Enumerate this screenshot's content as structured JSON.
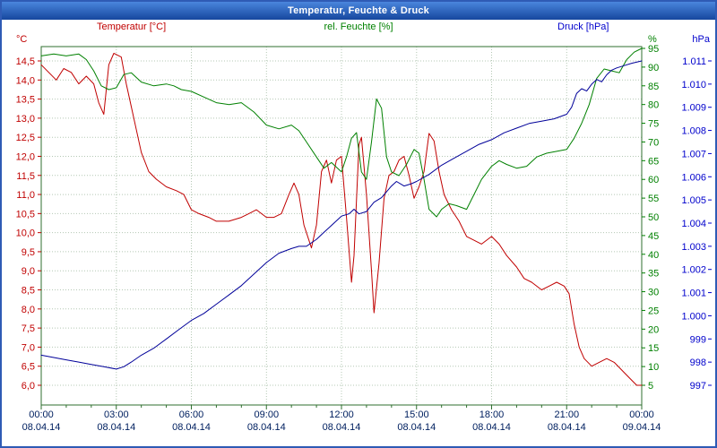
{
  "window": {
    "title": "Temperatur, Feuchte & Druck"
  },
  "legend": {
    "temperature_label": "Temperatur [°C]",
    "humidity_label": "rel. Feuchte [%]",
    "pressure_label": "Druck [hPa]"
  },
  "axis_units": {
    "left": "°C",
    "right": "%",
    "far_right": "hPa"
  },
  "colors": {
    "temperature": "#c00000",
    "humidity": "#008000",
    "pressure_line": "#000099",
    "pressure_label": "#0000cc",
    "grid": "#b4c8b4",
    "frame": "#2f6f2f",
    "x_label": "#002060",
    "title_bar": "#16479e"
  },
  "chart_data": {
    "type": "line",
    "title": "Temperatur, Feuchte & Druck",
    "grid": true,
    "legend_position": "top",
    "x_axis": {
      "range_hours": [
        0,
        24
      ],
      "tick_hours": [
        0,
        3,
        6,
        9,
        12,
        15,
        18,
        21,
        24
      ],
      "tick_times": [
        "00:00",
        "03:00",
        "06:00",
        "09:00",
        "12:00",
        "15:00",
        "18:00",
        "21:00",
        "00:00"
      ],
      "tick_dates": [
        "08.04.14",
        "08.04.14",
        "08.04.14",
        "08.04.14",
        "08.04.14",
        "08.04.14",
        "08.04.14",
        "08.04.14",
        "09.04.14"
      ]
    },
    "axes": {
      "temperature": {
        "unit": "°C",
        "color": "#c00000",
        "min": 6.0,
        "max": 14.5,
        "tick_values": [
          14.5,
          14.0,
          13.5,
          13.0,
          12.5,
          12.0,
          11.5,
          11.0,
          10.5,
          10.0,
          9.5,
          9.0,
          8.5,
          8.0,
          7.5,
          7.0,
          6.5,
          6.0
        ],
        "tick_labels": [
          "14,5",
          "14,0",
          "13,5",
          "13,0",
          "12,5",
          "12,0",
          "11,5",
          "11,0",
          "10,5",
          "10,0",
          "9,5",
          "9,0",
          "8,5",
          "8,0",
          "7,5",
          "7,0",
          "6,5",
          "6,0"
        ]
      },
      "humidity": {
        "unit": "%",
        "color": "#008000",
        "min": 5,
        "max": 95,
        "tick_values": [
          95,
          90,
          85,
          80,
          75,
          70,
          65,
          60,
          55,
          50,
          45,
          40,
          35,
          30,
          25,
          20,
          15,
          10,
          5
        ],
        "tick_labels": [
          "95",
          "90",
          "85",
          "80",
          "75",
          "70",
          "65",
          "60",
          "55",
          "50",
          "45",
          "40",
          "35",
          "30",
          "25",
          "20",
          "15",
          "10",
          "5"
        ]
      },
      "pressure": {
        "unit": "hPa",
        "color": "#0000cc",
        "min": 997,
        "max": 1011,
        "tick_values": [
          1011,
          1010,
          1009,
          1008,
          1007,
          1006,
          1005,
          1004,
          1003,
          1002,
          1001,
          1000,
          999,
          998,
          997
        ],
        "tick_labels": [
          "1.011",
          "1.010",
          "1.009",
          "1.008",
          "1.007",
          "1.006",
          "1.005",
          "1.004",
          "1.003",
          "1.002",
          "1.001",
          "1.000",
          "999",
          "998",
          "997"
        ]
      }
    },
    "series": [
      {
        "name": "Temperatur [°C]",
        "axis": "temperature",
        "color": "#c00000",
        "points": [
          [
            0,
            14.4
          ],
          [
            0.3,
            14.2
          ],
          [
            0.6,
            14.0
          ],
          [
            0.9,
            14.3
          ],
          [
            1.2,
            14.2
          ],
          [
            1.5,
            13.9
          ],
          [
            1.8,
            14.1
          ],
          [
            2.1,
            13.9
          ],
          [
            2.3,
            13.4
          ],
          [
            2.5,
            13.1
          ],
          [
            2.7,
            14.4
          ],
          [
            2.9,
            14.7
          ],
          [
            3.2,
            14.6
          ],
          [
            3.4,
            13.9
          ],
          [
            3.6,
            13.3
          ],
          [
            3.8,
            12.7
          ],
          [
            4.0,
            12.1
          ],
          [
            4.3,
            11.6
          ],
          [
            4.6,
            11.4
          ],
          [
            5.0,
            11.2
          ],
          [
            5.4,
            11.1
          ],
          [
            5.7,
            11.0
          ],
          [
            6.0,
            10.6
          ],
          [
            6.3,
            10.5
          ],
          [
            6.7,
            10.4
          ],
          [
            7.0,
            10.3
          ],
          [
            7.5,
            10.3
          ],
          [
            8.0,
            10.4
          ],
          [
            8.3,
            10.5
          ],
          [
            8.6,
            10.6
          ],
          [
            9.0,
            10.4
          ],
          [
            9.3,
            10.4
          ],
          [
            9.6,
            10.5
          ],
          [
            9.9,
            11.0
          ],
          [
            10.1,
            11.3
          ],
          [
            10.3,
            11.0
          ],
          [
            10.5,
            10.2
          ],
          [
            10.8,
            9.6
          ],
          [
            11.0,
            10.2
          ],
          [
            11.2,
            11.6
          ],
          [
            11.4,
            11.9
          ],
          [
            11.6,
            11.3
          ],
          [
            11.8,
            11.9
          ],
          [
            12.0,
            12.0
          ],
          [
            12.2,
            10.4
          ],
          [
            12.4,
            8.7
          ],
          [
            12.5,
            9.4
          ],
          [
            12.7,
            12.3
          ],
          [
            12.8,
            12.5
          ],
          [
            13.0,
            11.0
          ],
          [
            13.2,
            9.0
          ],
          [
            13.3,
            7.9
          ],
          [
            13.5,
            9.2
          ],
          [
            13.7,
            10.9
          ],
          [
            13.9,
            11.5
          ],
          [
            14.1,
            11.6
          ],
          [
            14.3,
            11.9
          ],
          [
            14.5,
            12.0
          ],
          [
            14.7,
            11.5
          ],
          [
            14.9,
            10.9
          ],
          [
            15.1,
            11.2
          ],
          [
            15.3,
            11.6
          ],
          [
            15.5,
            12.6
          ],
          [
            15.7,
            12.4
          ],
          [
            15.9,
            11.6
          ],
          [
            16.1,
            11.0
          ],
          [
            16.4,
            10.6
          ],
          [
            16.7,
            10.3
          ],
          [
            17.0,
            9.9
          ],
          [
            17.3,
            9.8
          ],
          [
            17.6,
            9.7
          ],
          [
            18.0,
            9.9
          ],
          [
            18.3,
            9.7
          ],
          [
            18.6,
            9.4
          ],
          [
            19.0,
            9.1
          ],
          [
            19.3,
            8.8
          ],
          [
            19.6,
            8.7
          ],
          [
            20.0,
            8.5
          ],
          [
            20.3,
            8.6
          ],
          [
            20.6,
            8.7
          ],
          [
            20.9,
            8.6
          ],
          [
            21.1,
            8.4
          ],
          [
            21.3,
            7.6
          ],
          [
            21.5,
            7.0
          ],
          [
            21.7,
            6.7
          ],
          [
            22.0,
            6.5
          ],
          [
            22.3,
            6.6
          ],
          [
            22.6,
            6.7
          ],
          [
            22.9,
            6.6
          ],
          [
            23.2,
            6.4
          ],
          [
            23.5,
            6.2
          ],
          [
            23.8,
            6.0
          ],
          [
            24,
            6.0
          ]
        ]
      },
      {
        "name": "rel. Feuchte [%]",
        "axis": "humidity",
        "color": "#008000",
        "points": [
          [
            0,
            93
          ],
          [
            0.5,
            93.5
          ],
          [
            1,
            93
          ],
          [
            1.5,
            93.5
          ],
          [
            1.8,
            92
          ],
          [
            2.1,
            89
          ],
          [
            2.4,
            85
          ],
          [
            2.7,
            84
          ],
          [
            3.0,
            84.5
          ],
          [
            3.3,
            88
          ],
          [
            3.6,
            88.5
          ],
          [
            4.0,
            86
          ],
          [
            4.5,
            85
          ],
          [
            5.0,
            85.5
          ],
          [
            5.3,
            85
          ],
          [
            5.6,
            84
          ],
          [
            6.0,
            83.5
          ],
          [
            6.5,
            82
          ],
          [
            7.0,
            80.5
          ],
          [
            7.5,
            80
          ],
          [
            8.0,
            80.5
          ],
          [
            8.5,
            78
          ],
          [
            9.0,
            74.5
          ],
          [
            9.5,
            73.5
          ],
          [
            10.0,
            74.5
          ],
          [
            10.3,
            73
          ],
          [
            10.6,
            70
          ],
          [
            11.0,
            66
          ],
          [
            11.3,
            63
          ],
          [
            11.6,
            64.5
          ],
          [
            12.0,
            62
          ],
          [
            12.2,
            66
          ],
          [
            12.4,
            71
          ],
          [
            12.6,
            72.5
          ],
          [
            12.8,
            62
          ],
          [
            13.0,
            60
          ],
          [
            13.2,
            70
          ],
          [
            13.4,
            81.5
          ],
          [
            13.6,
            79
          ],
          [
            13.8,
            66
          ],
          [
            14.0,
            62
          ],
          [
            14.3,
            61
          ],
          [
            14.6,
            64
          ],
          [
            14.9,
            68
          ],
          [
            15.1,
            67
          ],
          [
            15.3,
            60
          ],
          [
            15.5,
            52
          ],
          [
            15.8,
            50
          ],
          [
            16.0,
            52
          ],
          [
            16.3,
            53.5
          ],
          [
            16.6,
            53
          ],
          [
            17.0,
            52
          ],
          [
            17.3,
            56
          ],
          [
            17.6,
            60
          ],
          [
            18.0,
            63.5
          ],
          [
            18.3,
            65
          ],
          [
            18.6,
            64
          ],
          [
            19.0,
            63
          ],
          [
            19.4,
            63.5
          ],
          [
            19.8,
            66
          ],
          [
            20.2,
            67
          ],
          [
            20.6,
            67.5
          ],
          [
            21.0,
            68
          ],
          [
            21.3,
            71
          ],
          [
            21.6,
            75
          ],
          [
            21.9,
            80
          ],
          [
            22.2,
            87
          ],
          [
            22.5,
            89.5
          ],
          [
            22.8,
            89
          ],
          [
            23.1,
            88.5
          ],
          [
            23.4,
            92
          ],
          [
            23.7,
            94
          ],
          [
            24,
            95
          ]
        ]
      },
      {
        "name": "Druck [hPa]",
        "axis": "pressure",
        "color": "#000099",
        "points": [
          [
            0,
            998.3
          ],
          [
            0.5,
            998.2
          ],
          [
            1,
            998.1
          ],
          [
            1.5,
            998.0
          ],
          [
            2,
            997.9
          ],
          [
            2.5,
            997.8
          ],
          [
            3,
            997.7
          ],
          [
            3.3,
            997.8
          ],
          [
            3.6,
            998.0
          ],
          [
            4,
            998.3
          ],
          [
            4.5,
            998.6
          ],
          [
            5,
            999.0
          ],
          [
            5.5,
            999.4
          ],
          [
            6,
            999.8
          ],
          [
            6.5,
            1000.1
          ],
          [
            7,
            1000.5
          ],
          [
            7.5,
            1000.9
          ],
          [
            8,
            1001.3
          ],
          [
            8.5,
            1001.8
          ],
          [
            9,
            1002.3
          ],
          [
            9.5,
            1002.7
          ],
          [
            10,
            1002.9
          ],
          [
            10.3,
            1003.0
          ],
          [
            10.6,
            1003.0
          ],
          [
            11,
            1003.3
          ],
          [
            11.3,
            1003.6
          ],
          [
            11.6,
            1003.9
          ],
          [
            12,
            1004.3
          ],
          [
            12.3,
            1004.4
          ],
          [
            12.5,
            1004.6
          ],
          [
            12.7,
            1004.4
          ],
          [
            13,
            1004.5
          ],
          [
            13.3,
            1004.9
          ],
          [
            13.6,
            1005.1
          ],
          [
            14,
            1005.6
          ],
          [
            14.2,
            1005.8
          ],
          [
            14.5,
            1005.6
          ],
          [
            14.8,
            1005.7
          ],
          [
            15,
            1005.8
          ],
          [
            15.5,
            1006.1
          ],
          [
            16,
            1006.5
          ],
          [
            16.5,
            1006.8
          ],
          [
            17,
            1007.1
          ],
          [
            17.5,
            1007.4
          ],
          [
            18,
            1007.6
          ],
          [
            18.5,
            1007.9
          ],
          [
            19,
            1008.1
          ],
          [
            19.5,
            1008.3
          ],
          [
            20,
            1008.4
          ],
          [
            20.5,
            1008.5
          ],
          [
            21,
            1008.7
          ],
          [
            21.2,
            1009.0
          ],
          [
            21.4,
            1009.6
          ],
          [
            21.6,
            1009.8
          ],
          [
            21.8,
            1009.7
          ],
          [
            22,
            1010.0
          ],
          [
            22.2,
            1010.2
          ],
          [
            22.4,
            1010.1
          ],
          [
            22.6,
            1010.4
          ],
          [
            22.8,
            1010.6
          ],
          [
            23,
            1010.7
          ],
          [
            23.3,
            1010.8
          ],
          [
            23.6,
            1010.9
          ],
          [
            24,
            1011.0
          ]
        ]
      }
    ]
  }
}
